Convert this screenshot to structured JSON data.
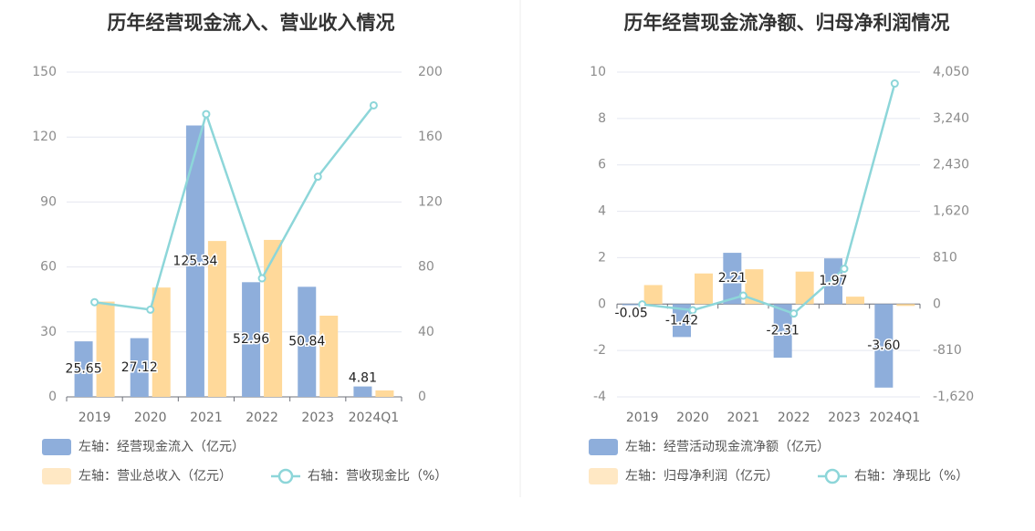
{
  "chart_data": [
    {
      "type": "bar",
      "title": "历年经营现金流入、营业收入情况",
      "categories": [
        "2019",
        "2020",
        "2021",
        "2022",
        "2023",
        "2024Q1"
      ],
      "left_axis": {
        "min": 0,
        "max": 150,
        "ticks": [
          "0",
          "30",
          "60",
          "90",
          "120",
          "150"
        ]
      },
      "right_axis": {
        "min": 0,
        "max": 200,
        "ticks": [
          "0",
          "40",
          "80",
          "120",
          "160",
          "200"
        ]
      },
      "series": [
        {
          "name": "左轴：经营现金流入（亿元）",
          "kind": "bar",
          "axis": "left",
          "color": "#8eaedb",
          "values": [
            25.65,
            27.12,
            125.34,
            52.96,
            50.84,
            4.81
          ],
          "labels": [
            "25.65",
            "27.12",
            "125.34",
            "52.96",
            "50.84",
            "4.81"
          ]
        },
        {
          "name": "左轴：营业总收入（亿元）",
          "kind": "bar",
          "axis": "left",
          "color": "#ffd99a",
          "values": [
            44.0,
            50.5,
            72.0,
            72.5,
            37.5,
            3.0
          ]
        },
        {
          "name": "右轴：营收现金比（%）",
          "kind": "line",
          "axis": "right",
          "color": "#8dd6d9",
          "values": [
            58.3,
            53.7,
            174.1,
            73.0,
            135.6,
            179.5
          ]
        }
      ],
      "legend": [
        {
          "label": "左轴：经营现金流入（亿元）",
          "icon": "bar",
          "color": "#8eaedb"
        },
        {
          "label": "左轴：营业总收入（亿元）",
          "icon": "bar",
          "color": "#ffe8c4"
        },
        {
          "label": "右轴：营收现金比（%）",
          "icon": "line",
          "color": "#8dd6d9"
        }
      ],
      "grid": true,
      "legend_position": "bottom"
    },
    {
      "type": "bar",
      "title": "历年经营现金流净额、归母净利润情况",
      "categories": [
        "2019",
        "2020",
        "2021",
        "2022",
        "2023",
        "2024Q1"
      ],
      "left_axis": {
        "min": -4,
        "max": 10,
        "ticks": [
          "-4",
          "-2",
          "0",
          "2",
          "4",
          "6",
          "8",
          "10"
        ]
      },
      "right_axis": {
        "min": -1620,
        "max": 4050,
        "ticks": [
          "-1,620",
          "-810",
          "0",
          "810",
          "1,620",
          "2,430",
          "3,240",
          "4,050"
        ]
      },
      "series": [
        {
          "name": "左轴：经营活动现金流净额（亿元）",
          "kind": "bar",
          "axis": "left",
          "color": "#8eaedb",
          "values": [
            -0.05,
            -1.42,
            2.21,
            -2.31,
            1.97,
            -3.6
          ],
          "labels": [
            "-0.05",
            "-1.42",
            "2.21",
            "-2.31",
            "1.97",
            "-3.60"
          ]
        },
        {
          "name": "左轴：归母净利润（亿元）",
          "kind": "bar",
          "axis": "left",
          "color": "#ffd99a",
          "values": [
            0.82,
            1.32,
            1.5,
            1.4,
            0.32,
            -0.08
          ]
        },
        {
          "name": "右轴：净现比（%）",
          "kind": "line",
          "axis": "right",
          "color": "#8dd6d9",
          "values": [
            -6,
            -107,
            147,
            -165,
            616,
            3850
          ]
        }
      ],
      "legend": [
        {
          "label": "左轴：经营活动现金流净额（亿元）",
          "icon": "bar",
          "color": "#8eaedb"
        },
        {
          "label": "左轴：归母净利润（亿元）",
          "icon": "bar",
          "color": "#ffe8c4"
        },
        {
          "label": "右轴：净现比（%）",
          "icon": "line",
          "color": "#8dd6d9"
        }
      ],
      "grid": true,
      "legend_position": "bottom"
    }
  ]
}
